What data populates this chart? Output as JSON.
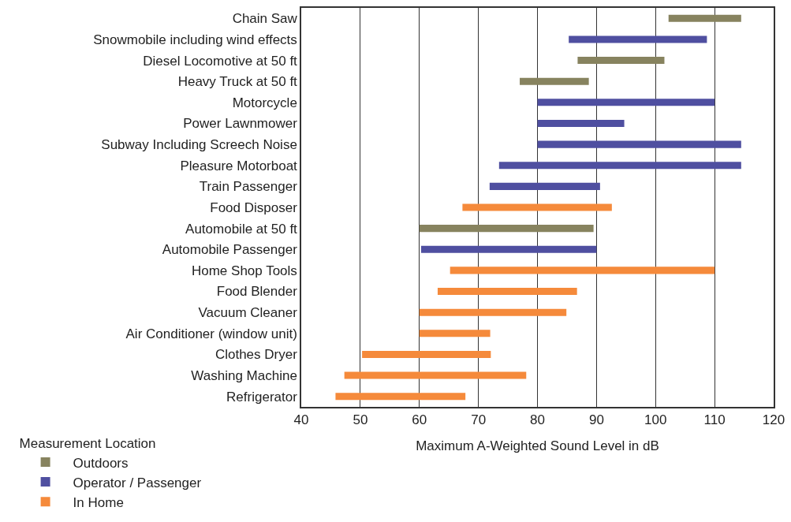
{
  "chart_data": {
    "type": "bar",
    "orientation": "horizontal",
    "xlabel": "Maximum A-Weighted Sound Level in dB",
    "legend_title": "Measurement Location",
    "legend": "bottom left",
    "grid": "x",
    "categories": [
      "Chain Saw",
      "Snowmobile including wind effects",
      "Diesel Locomotive at 50 ft",
      "Heavy Truck at 50 ft",
      "Motorcycle",
      "Power Lawnmower",
      "Subway Including Screech Noise",
      "Pleasure Motorboat",
      "Train Passenger",
      "Food Disposer",
      "Automobile at 50 ft",
      "Automobile Passenger",
      "Home Shop Tools",
      "Food Blender",
      "Vacuum Cleaner",
      "Air Conditioner (window unit)",
      "Clothes Dryer",
      "Washing Machine",
      "Refrigerator"
    ],
    "xlim": [
      40,
      120
    ],
    "xticks": [
      40,
      50,
      60,
      70,
      80,
      90,
      100,
      110,
      120
    ],
    "series": [
      {
        "name": "Outdoors",
        "color": "#87835f",
        "base": [
          102.2,
          null,
          86.8,
          77.0,
          null,
          null,
          null,
          null,
          null,
          null,
          60,
          null,
          null,
          null,
          null,
          null,
          null,
          null,
          null
        ],
        "values": [
          12.3,
          null,
          14.7,
          11.7,
          null,
          null,
          null,
          null,
          null,
          null,
          29.5,
          null,
          null,
          null,
          null,
          null,
          null,
          null,
          null
        ]
      },
      {
        "name": "Operator / Passenger",
        "color": "#4f4fa0",
        "base": [
          null,
          85.3,
          null,
          null,
          80,
          80,
          80,
          73.5,
          71.9,
          null,
          null,
          60.3,
          null,
          null,
          null,
          null,
          null,
          null,
          null
        ],
        "values": [
          null,
          23.4,
          null,
          null,
          30,
          14.7,
          34.5,
          41,
          18.7,
          null,
          null,
          29.7,
          null,
          null,
          null,
          null,
          null,
          null,
          null
        ]
      },
      {
        "name": "In Home",
        "color": "#f58a3b",
        "base": [
          null,
          null,
          null,
          null,
          null,
          null,
          null,
          null,
          null,
          67.3,
          null,
          null,
          65.2,
          63.1,
          60,
          60,
          50.3,
          47.3,
          45.8
        ],
        "values": [
          null,
          null,
          null,
          null,
          null,
          null,
          null,
          null,
          null,
          25.3,
          null,
          null,
          44.8,
          23.6,
          24.9,
          12,
          21.8,
          30.8,
          22
        ]
      }
    ]
  }
}
